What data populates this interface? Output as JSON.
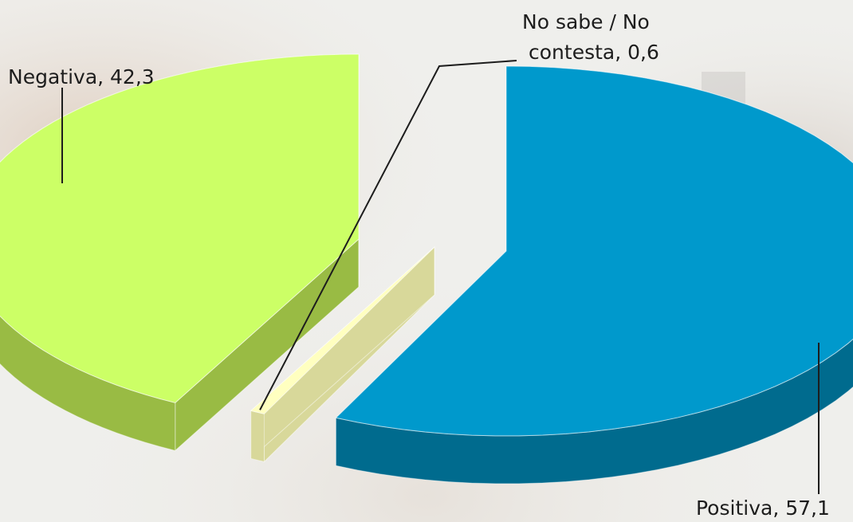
{
  "chart_data": {
    "type": "pie",
    "style": "3d-exploded",
    "slices": [
      {
        "label": "Positiva",
        "value": 57.1,
        "display": "Positiva, 57,1",
        "color": "#0099CC",
        "side_color": "#006B8E"
      },
      {
        "label": "No sabe / No contesta",
        "value": 0.6,
        "display_lines": [
          "No sabe / No",
          "contesta, 0,6"
        ],
        "color": "#FFFFC0",
        "side_color": "#D8D89A"
      },
      {
        "label": "Negativa",
        "value": 42.3,
        "display": "Negativa, 42,3",
        "color": "#CCFF66",
        "side_color": "#99BB44"
      }
    ]
  }
}
